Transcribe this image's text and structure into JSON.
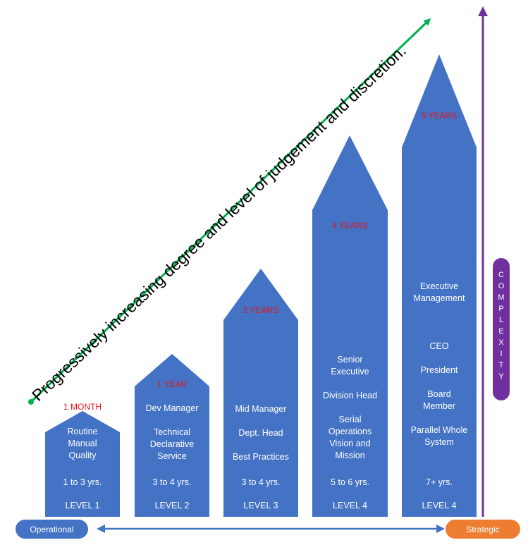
{
  "title": "Progressively increasing degree and level of judgement and discretion.",
  "complexity_label": [
    "C",
    "O",
    "M",
    "P",
    "L",
    "E",
    "X",
    "I",
    "T",
    "Y"
  ],
  "scale": {
    "left": "Operational",
    "right": "Strategic"
  },
  "colors": {
    "column": "#4472c4",
    "tenure": "#e8141c",
    "diag_arrow": "#00b050",
    "complexity": "#7030a0",
    "operational": "#4472c4",
    "strategic": "#ed7d31"
  },
  "columns": [
    {
      "tenure": "1 MONTH",
      "lines": [
        "Routine",
        "Manual",
        "Quality"
      ],
      "years": "1 to 3 yrs.",
      "level": "LEVEL 1"
    },
    {
      "tenure": "1 YEAR",
      "lines": [
        "Dev Manager",
        "",
        "Technical",
        "Declarative",
        "Service"
      ],
      "years": "3 to 4 yrs.",
      "level": "LEVEL 2"
    },
    {
      "tenure": "2 YEARS",
      "lines": [
        "Mid Manager",
        "",
        "Dept. Head",
        "",
        "Best Practices"
      ],
      "years": "3 to 4 yrs.",
      "level": "LEVEL 3"
    },
    {
      "tenure": "4 YEARS",
      "lines": [
        "Senior",
        "Executive",
        "",
        "Division Head",
        "",
        "Serial",
        "Operations",
        "Vision and",
        "Mission"
      ],
      "years": "5 to 6 yrs.",
      "level": "LEVEL 4"
    },
    {
      "tenure": "5 YEARS",
      "lines": [
        "Executive",
        "Management",
        "",
        "",
        "",
        "CEO",
        "",
        "President",
        "",
        "Board",
        "Member",
        "",
        "Parallel Whole",
        "System"
      ],
      "years": "7+ yrs.",
      "level": "LEVEL 4"
    }
  ]
}
